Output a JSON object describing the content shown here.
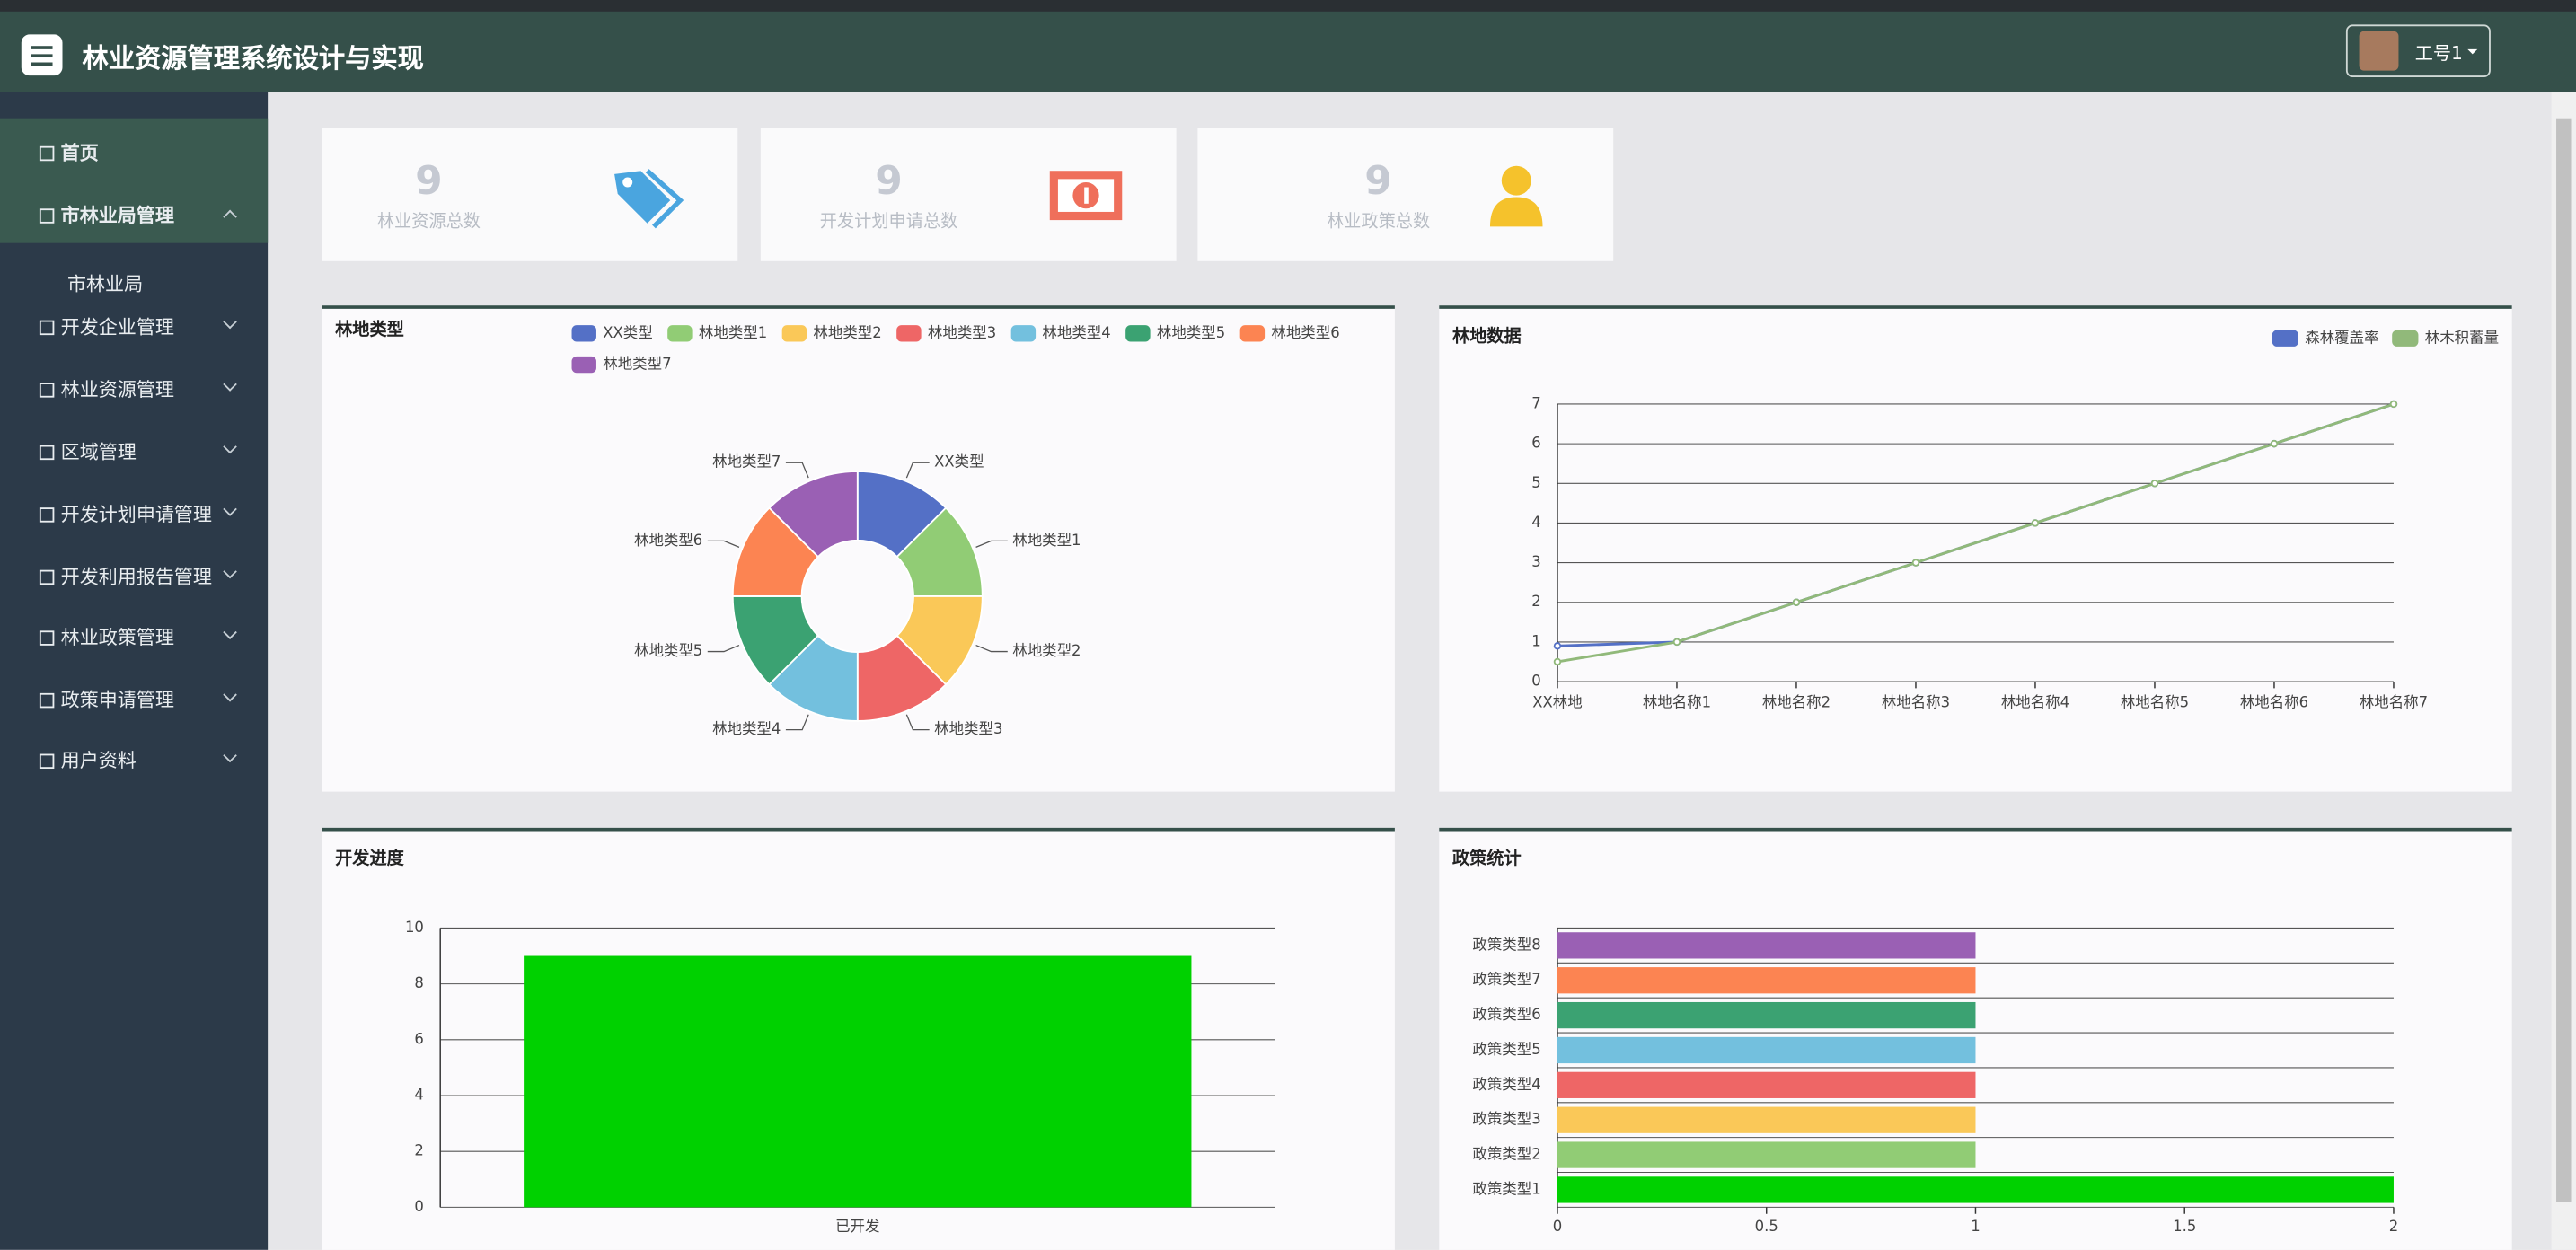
{
  "header": {
    "title": "林业资源管理系统设计与实现",
    "user": "工号1"
  },
  "nav": {
    "items": [
      "首页",
      "市林业局管理",
      "市林业局",
      "开发企业管理",
      "林业资源管理",
      "区域管理",
      "开发计划申请管理",
      "开发利用报告管理",
      "林业政策管理",
      "政策申请管理",
      "用户资料"
    ]
  },
  "stats": [
    {
      "value": 9,
      "label": "林业资源总数"
    },
    {
      "value": 9,
      "label": "开发计划申请总数"
    },
    {
      "value": 9,
      "label": "林业政策总数"
    }
  ],
  "chart_data": [
    {
      "type": "pie",
      "title": "林地类型",
      "categories": [
        "XX类型",
        "林地类型1",
        "林地类型2",
        "林地类型3",
        "林地类型4",
        "林地类型5",
        "林地类型6",
        "林地类型7"
      ],
      "values": [
        1,
        1,
        1,
        1,
        1,
        1,
        1,
        1
      ],
      "colors": [
        "#5470c6",
        "#91cc75",
        "#fac858",
        "#ee6666",
        "#73c0de",
        "#3ba272",
        "#fc8452",
        "#9a60b4"
      ],
      "legend": "top"
    },
    {
      "type": "line",
      "title": "林地数据",
      "categories": [
        "XX林地",
        "林地名称1",
        "林地名称2",
        "林地名称3",
        "林地名称4",
        "林地名称5",
        "林地名称6",
        "林地名称7"
      ],
      "series": [
        {
          "name": "森林覆盖率",
          "color": "#5470c6",
          "values": [
            0.9,
            1,
            2,
            3,
            4,
            5,
            6,
            7
          ]
        },
        {
          "name": "林木积蓄量",
          "color": "#91b97a",
          "values": [
            0.5,
            1,
            2,
            3,
            4,
            5,
            6,
            7
          ]
        }
      ],
      "ylim": [
        0,
        7
      ],
      "yticks": [
        0,
        1,
        2,
        3,
        4,
        5,
        6,
        7
      ],
      "grid": true,
      "legend": "top-right"
    },
    {
      "type": "bar",
      "title": "开发进度",
      "categories": [
        "已开发"
      ],
      "values": [
        9
      ],
      "color": "#00d100",
      "ylim": [
        0,
        10
      ],
      "yticks": [
        0,
        2,
        4,
        6,
        8,
        10
      ],
      "grid": true
    },
    {
      "type": "hbar",
      "title": "政策统计",
      "categories": [
        "政策类型1",
        "政策类型2",
        "政策类型3",
        "政策类型4",
        "政策类型5",
        "政策类型6",
        "政策类型7",
        "政策类型8"
      ],
      "values": [
        2,
        1,
        1,
        1,
        1,
        1,
        1,
        1
      ],
      "colors": [
        "#00d100",
        "#91cc75",
        "#fac858",
        "#ee6666",
        "#73c0de",
        "#3ba272",
        "#fc8452",
        "#9a60b4"
      ],
      "xlim": [
        0,
        2
      ],
      "xticks": [
        0,
        0.5,
        1,
        1.5,
        2
      ]
    }
  ]
}
